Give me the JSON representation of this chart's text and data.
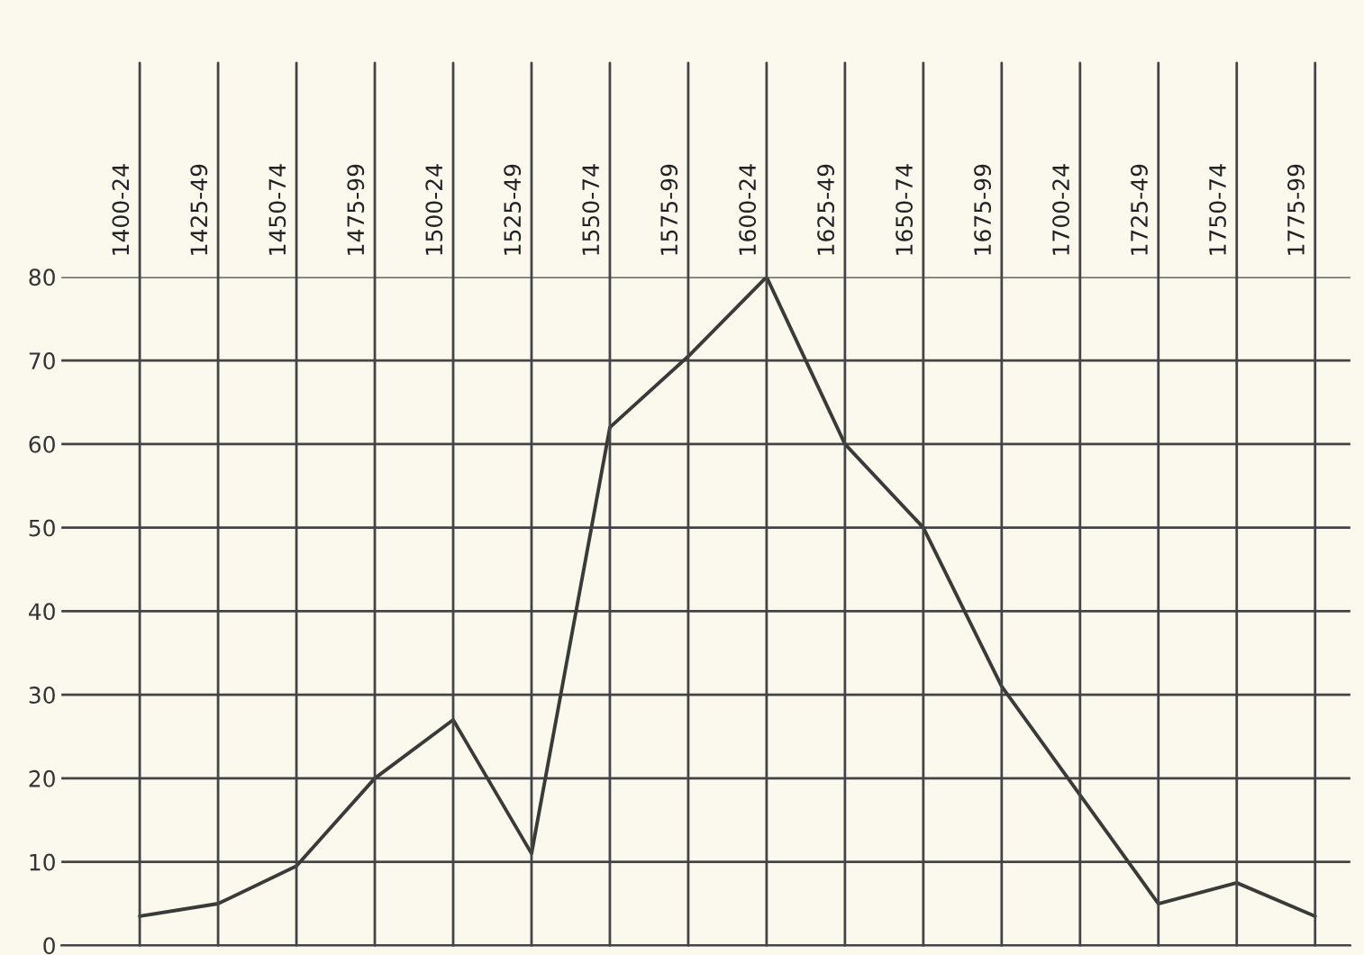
{
  "chart_data": {
    "type": "line",
    "categories": [
      "1400-24",
      "1425-49",
      "1450-74",
      "1475-99",
      "1500-24",
      "1525-49",
      "1550-74",
      "1575-99",
      "1600-24",
      "1625-49",
      "1650-74",
      "1675-99",
      "1700-24",
      "1725-49",
      "1750-74",
      "1775-99"
    ],
    "series": [
      {
        "color": "#3a3a36",
        "values": [
          3.5,
          5,
          9.5,
          20,
          27,
          11,
          62,
          70.5,
          80,
          60,
          50,
          31,
          18,
          5,
          7.5,
          3.5
        ]
      }
    ],
    "ylim": [
      0,
      80
    ],
    "yticks": [
      0,
      10,
      20,
      30,
      40,
      50,
      60,
      70,
      80
    ],
    "grid": true,
    "marker": "none",
    "line_style": "solid"
  }
}
